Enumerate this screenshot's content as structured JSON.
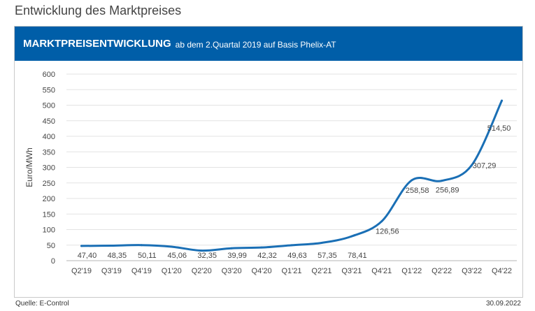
{
  "page": {
    "title": "Entwicklung des Marktpreises",
    "source": "Quelle: E-Control",
    "date": "30.09.2022"
  },
  "header": {
    "title": "MARKTPREISENTWICKLUNG",
    "subtitle": "ab dem 2.Quartal 2019 auf Basis Phelix-AT",
    "background": "#005ea8"
  },
  "chart_data": {
    "type": "line",
    "title": "MARKTPREISENTWICKLUNG",
    "subtitle": "ab dem 2.Quartal 2019 auf Basis Phelix-AT",
    "xlabel": "",
    "ylabel": "Euro/MWh",
    "ylim": [
      0,
      600
    ],
    "yticks": [
      0,
      50,
      100,
      150,
      200,
      250,
      300,
      350,
      400,
      450,
      500,
      550,
      600
    ],
    "grid": true,
    "legend": "none",
    "line_color": "#1a6fb5",
    "categories": [
      "Q2'19",
      "Q3'19",
      "Q4'19",
      "Q1'20",
      "Q2'20",
      "Q3'20",
      "Q4'20",
      "Q1'21",
      "Q2'21",
      "Q3'21",
      "Q4'21",
      "Q1'22",
      "Q2'22",
      "Q3'22",
      "Q4'22"
    ],
    "values": [
      47.4,
      48.35,
      50.11,
      45.06,
      32.35,
      39.99,
      42.32,
      49.63,
      57.35,
      78.41,
      126.56,
      258.58,
      256.89,
      307.29,
      514.5
    ],
    "value_labels": [
      "47,40",
      "48,35",
      "50,11",
      "45,06",
      "32,35",
      "39,99",
      "42,32",
      "49,63",
      "57,35",
      "78,41",
      "126,56",
      "258,58",
      "256,89",
      "307,29",
      "514,50"
    ]
  }
}
